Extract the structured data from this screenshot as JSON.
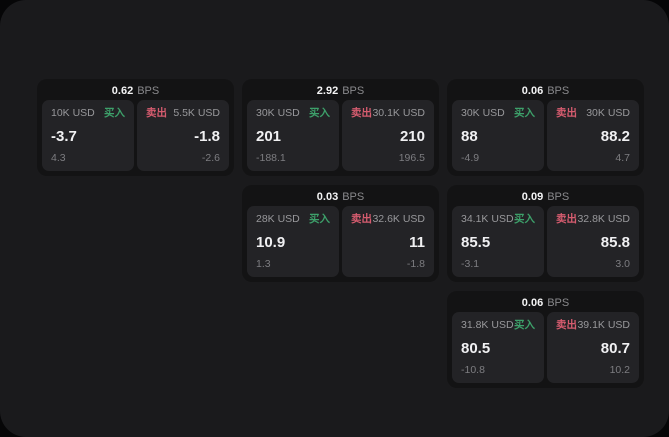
{
  "labels": {
    "bps_unit": "BPS",
    "buy": "买入",
    "sell": "卖出"
  },
  "colors": {
    "page_background": "#060607",
    "panel_background": "#1a1a1c",
    "card_background": "#131314",
    "subcard_background": "#232326",
    "buy_accent": "#3da06a",
    "sell_accent": "#d65c6f",
    "value_text": "#f0f0f2",
    "label_text": "#98989b",
    "sub_text": "#7d7d81"
  },
  "cards": [
    {
      "bps": "0.62",
      "row": "1",
      "col": "1",
      "buy": {
        "amount": "10K USD",
        "value": "-3.7",
        "sub": "4.3"
      },
      "sell": {
        "amount": "5.5K USD",
        "value": "-1.8",
        "sub": "-2.6"
      }
    },
    {
      "bps": "2.92",
      "row": "1",
      "col": "2",
      "buy": {
        "amount": "30K USD",
        "value": "201",
        "sub": "-188.1"
      },
      "sell": {
        "amount": "30.1K USD",
        "value": "210",
        "sub": "196.5"
      }
    },
    {
      "bps": "0.06",
      "row": "1",
      "col": "3",
      "buy": {
        "amount": "30K USD",
        "value": "88",
        "sub": "-4.9"
      },
      "sell": {
        "amount": "30K USD",
        "value": "88.2",
        "sub": "4.7"
      }
    },
    {
      "bps": "0.03",
      "row": "2",
      "col": "2",
      "buy": {
        "amount": "28K USD",
        "value": "10.9",
        "sub": "1.3"
      },
      "sell": {
        "amount": "32.6K USD",
        "value": "11",
        "sub": "-1.8"
      }
    },
    {
      "bps": "0.09",
      "row": "2",
      "col": "3",
      "buy": {
        "amount": "34.1K USD",
        "value": "85.5",
        "sub": "-3.1"
      },
      "sell": {
        "amount": "32.8K USD",
        "value": "85.8",
        "sub": "3.0"
      }
    },
    {
      "bps": "0.06",
      "row": "3",
      "col": "3",
      "buy": {
        "amount": "31.8K USD",
        "value": "80.5",
        "sub": "-10.8"
      },
      "sell": {
        "amount": "39.1K USD",
        "value": "80.7",
        "sub": "10.2"
      }
    }
  ]
}
